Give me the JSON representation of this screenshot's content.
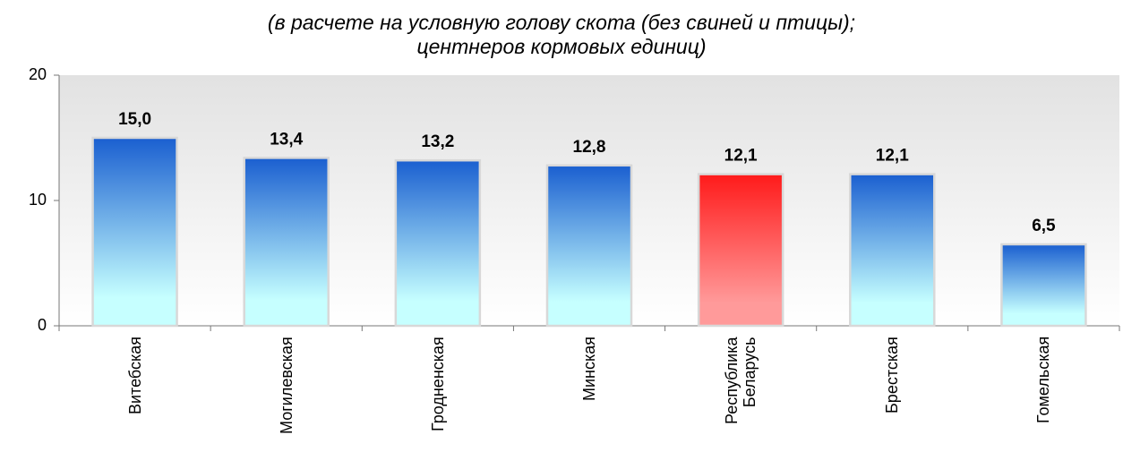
{
  "chart_data": {
    "type": "bar",
    "title": "(в расчете на условную голову скота (без свиней и птицы);\nцентнеров кормовых единиц)",
    "categories": [
      "Витебская",
      "Могилевская",
      "Гродненская",
      "Минская",
      "Республика\nБеларусь",
      "Брестская",
      "Гомельская"
    ],
    "values": [
      15.0,
      13.4,
      13.2,
      12.8,
      12.1,
      12.1,
      6.5
    ],
    "value_labels": [
      "15,0",
      "13,4",
      "13,2",
      "12,8",
      "12,1",
      "12,1",
      "6,5"
    ],
    "colors": [
      "#1a5fd0",
      "#1a5fd0",
      "#1a5fd0",
      "#1a5fd0",
      "#ff1a1a",
      "#1a5fd0",
      "#1a5fd0"
    ],
    "bottom_colors": [
      "#c6ffff",
      "#c6ffff",
      "#c6ffff",
      "#c6ffff",
      "#ff9a9a",
      "#c6ffff",
      "#c6ffff"
    ],
    "ylim": [
      0,
      20
    ],
    "yticks": [
      0,
      10,
      20
    ],
    "grid": false
  }
}
